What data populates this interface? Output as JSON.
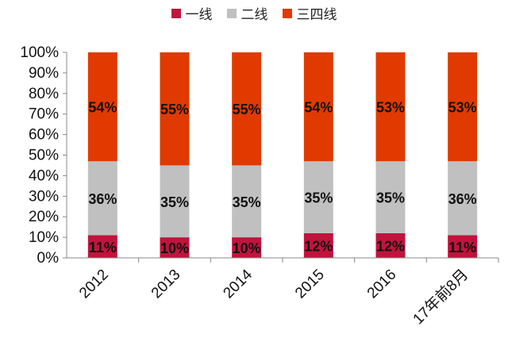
{
  "chart_data": {
    "type": "bar",
    "stacked": true,
    "categories": [
      "2012",
      "2013",
      "2014",
      "2015",
      "2016",
      "17年前8月"
    ],
    "series": [
      {
        "name": "一线",
        "color": "#c0143c",
        "values": [
          11,
          10,
          10,
          12,
          12,
          11
        ],
        "labels": [
          "11%",
          "10%",
          "10%",
          "12%",
          "12%",
          "11%"
        ]
      },
      {
        "name": "二线",
        "color": "#c0c0c0",
        "values": [
          36,
          35,
          35,
          35,
          35,
          36
        ],
        "labels": [
          "36%",
          "35%",
          "35%",
          "35%",
          "35%",
          "36%"
        ]
      },
      {
        "name": "三四线",
        "color": "#e03a00",
        "values": [
          54,
          55,
          55,
          54,
          53,
          53
        ],
        "labels": [
          "54%",
          "55%",
          "55%",
          "54%",
          "53%",
          "53%"
        ]
      }
    ],
    "yticks": [
      "0%",
      "10%",
      "20%",
      "30%",
      "40%",
      "50%",
      "60%",
      "70%",
      "80%",
      "90%",
      "100%"
    ],
    "ylim": [
      0,
      100
    ],
    "legend": "top"
  }
}
